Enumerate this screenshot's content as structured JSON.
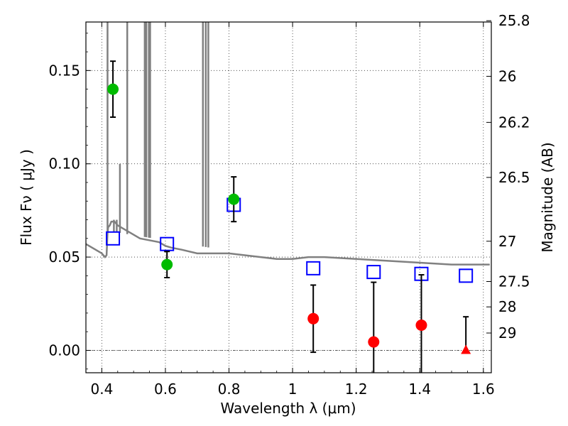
{
  "chart_data": {
    "type": "scatter",
    "xlabel": "Wavelength  λ (μm)",
    "ylabel": "Flux  Fν  ( μJy )",
    "ylabel_right": "Magnitude (AB)",
    "xlim": [
      0.35,
      1.625
    ],
    "ylim": [
      -0.012,
      0.176
    ],
    "x_ticks": [
      0.4,
      0.6,
      0.8,
      1.0,
      1.2,
      1.4,
      1.6
    ],
    "x_tick_labels": [
      "0.4",
      "0.6",
      "0.8",
      "1",
      "1.2",
      "1.4",
      "1.6"
    ],
    "y_ticks": [
      0.0,
      0.05,
      0.1,
      0.15
    ],
    "y_tick_labels": [
      "0.00",
      "0.05",
      "0.10",
      "0.15"
    ],
    "right_ticks": [
      {
        "label": "25.8",
        "flux": 0.1767
      },
      {
        "label": "26",
        "flux": 0.1469
      },
      {
        "label": "26.2",
        "flux": 0.1222
      },
      {
        "label": "26.5",
        "flux": 0.0927
      },
      {
        "label": "27",
        "flux": 0.0585
      },
      {
        "label": "27.5",
        "flux": 0.0369
      },
      {
        "label": "28",
        "flux": 0.0233
      },
      {
        "label": "29",
        "flux": 0.0093
      }
    ],
    "grid": true,
    "series": [
      {
        "name": "model_spectrum",
        "kind": "line",
        "color": "#808080",
        "x": [
          0.35,
          0.37,
          0.39,
          0.4,
          0.41,
          0.415,
          0.418,
          0.42,
          0.425,
          0.43,
          0.44,
          0.45,
          0.46,
          0.47,
          0.48,
          0.5,
          0.52,
          0.55,
          0.58,
          0.6,
          0.62,
          0.65,
          0.7,
          0.75,
          0.8,
          0.85,
          0.9,
          0.95,
          1.0,
          1.05,
          1.1,
          1.2,
          1.3,
          1.4,
          1.5,
          1.62
        ],
        "y": [
          0.057,
          0.055,
          0.053,
          0.052,
          0.05,
          0.051,
          0.063,
          0.066,
          0.067,
          0.069,
          0.069,
          0.067,
          0.066,
          0.065,
          0.064,
          0.062,
          0.06,
          0.059,
          0.058,
          0.056,
          0.055,
          0.054,
          0.052,
          0.052,
          0.052,
          0.051,
          0.05,
          0.049,
          0.049,
          0.05,
          0.05,
          0.049,
          0.048,
          0.047,
          0.046,
          0.046
        ]
      },
      {
        "name": "model_spikes",
        "kind": "vlines",
        "color": "#808080",
        "x": [
          0.418,
          0.438,
          0.447,
          0.457,
          0.48,
          0.535,
          0.54,
          0.548,
          0.552,
          0.718,
          0.727,
          0.735
        ],
        "y_top": [
          0.176,
          0.07,
          0.07,
          0.1,
          0.176,
          0.176,
          0.176,
          0.176,
          0.176,
          0.176,
          0.176,
          0.176
        ]
      },
      {
        "name": "model_photometry",
        "kind": "open_square",
        "color": "#0000ff",
        "x": [
          0.435,
          0.605,
          0.815,
          1.065,
          1.255,
          1.405,
          1.545
        ],
        "y": [
          0.06,
          0.057,
          0.078,
          0.044,
          0.042,
          0.041,
          0.04
        ]
      },
      {
        "name": "detections",
        "kind": "circle",
        "color": "#00bb00",
        "x": [
          0.435,
          0.605,
          0.815
        ],
        "y": [
          0.14,
          0.046,
          0.081
        ],
        "err": [
          0.015,
          0.007,
          0.012
        ]
      },
      {
        "name": "non_detections",
        "kind": "circle",
        "color": "#ff0000",
        "x": [
          1.065,
          1.255,
          1.405
        ],
        "y": [
          0.017,
          0.0045,
          0.0135
        ],
        "err": [
          0.018,
          0.032,
          0.027
        ]
      },
      {
        "name": "upper_limit",
        "kind": "triangle",
        "color": "#ff0000",
        "x": [
          1.545
        ],
        "y": [
          0.0
        ],
        "err_up": [
          0.018
        ]
      }
    ]
  }
}
